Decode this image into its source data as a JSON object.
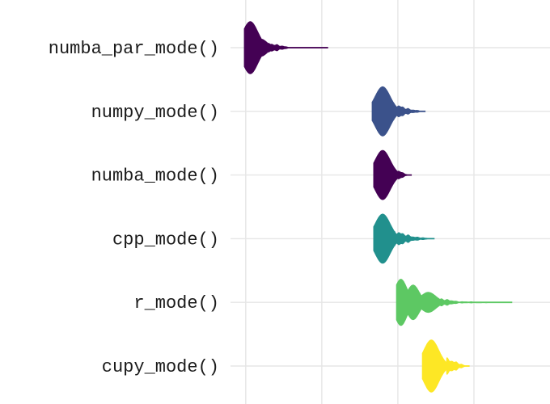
{
  "chart_data": {
    "type": "violin",
    "title": "",
    "xlabel": "",
    "ylabel": "",
    "grid": true,
    "legend": "none",
    "xlim": [
      -0.1,
      2.0
    ],
    "x_gridlines": [
      0,
      0.5,
      1.0,
      1.5
    ],
    "categories": [
      "numba_par_mode()",
      "numpy_mode()",
      "numba_mode()",
      "cpp_mode()",
      "r_mode()",
      "cupy_mode()"
    ],
    "series": [
      {
        "category": "numba_par_mode()",
        "color": "#440154",
        "peaks": [
          [
            0.03,
            0.9,
            0.05
          ],
          [
            0.1,
            0.3,
            0.04
          ]
        ],
        "tail": [
          [
            0.15,
            0.18,
            0.085
          ],
          [
            0.3,
            0.0,
            0.18
          ]
        ],
        "extent": [
          -0.01,
          0.54
        ]
      },
      {
        "category": "numpy_mode()",
        "color": "#3b528b",
        "peaks": [
          [
            0.9,
            0.85,
            0.05
          ]
        ],
        "tail": [
          [
            0.97,
            0.3,
            0.07
          ],
          [
            1.08,
            0.08,
            0.02
          ],
          [
            1.18,
            0.0,
            0.0
          ]
        ],
        "extent": [
          0.83,
          1.18
        ]
      },
      {
        "category": "numba_mode()",
        "color": "#440154",
        "peaks": [
          [
            0.9,
            0.85,
            0.05
          ]
        ],
        "tail": [
          [
            0.97,
            0.25,
            0.07
          ],
          [
            1.07,
            0.0,
            0.02
          ]
        ],
        "extent": [
          0.84,
          1.09
        ]
      },
      {
        "category": "cpp_mode()",
        "color": "#21908d",
        "peaks": [
          [
            0.9,
            0.85,
            0.05
          ]
        ],
        "tail": [
          [
            0.98,
            0.3,
            0.08
          ],
          [
            1.1,
            0.08,
            0.02
          ],
          [
            1.23,
            0.0,
            0.02
          ]
        ],
        "extent": [
          0.84,
          1.24
        ]
      },
      {
        "category": "r_mode()",
        "color": "#5dc863",
        "peaks": [
          [
            1.02,
            0.8,
            0.04
          ],
          [
            1.1,
            0.6,
            0.04
          ],
          [
            1.2,
            0.35,
            0.05
          ]
        ],
        "tail": [
          [
            1.28,
            0.15,
            0.05
          ],
          [
            1.4,
            0.03,
            0.02
          ],
          [
            1.6,
            0.02,
            0.01
          ],
          [
            1.75,
            0.0,
            0.0
          ]
        ],
        "extent": [
          0.99,
          1.75
        ]
      },
      {
        "category": "cupy_mode()",
        "color": "#fde725",
        "peaks": [
          [
            1.22,
            0.9,
            0.05
          ]
        ],
        "tail": [
          [
            1.32,
            0.3,
            0.06
          ],
          [
            1.45,
            0.0,
            0.02
          ]
        ],
        "extent": [
          1.16,
          1.47
        ]
      }
    ]
  }
}
